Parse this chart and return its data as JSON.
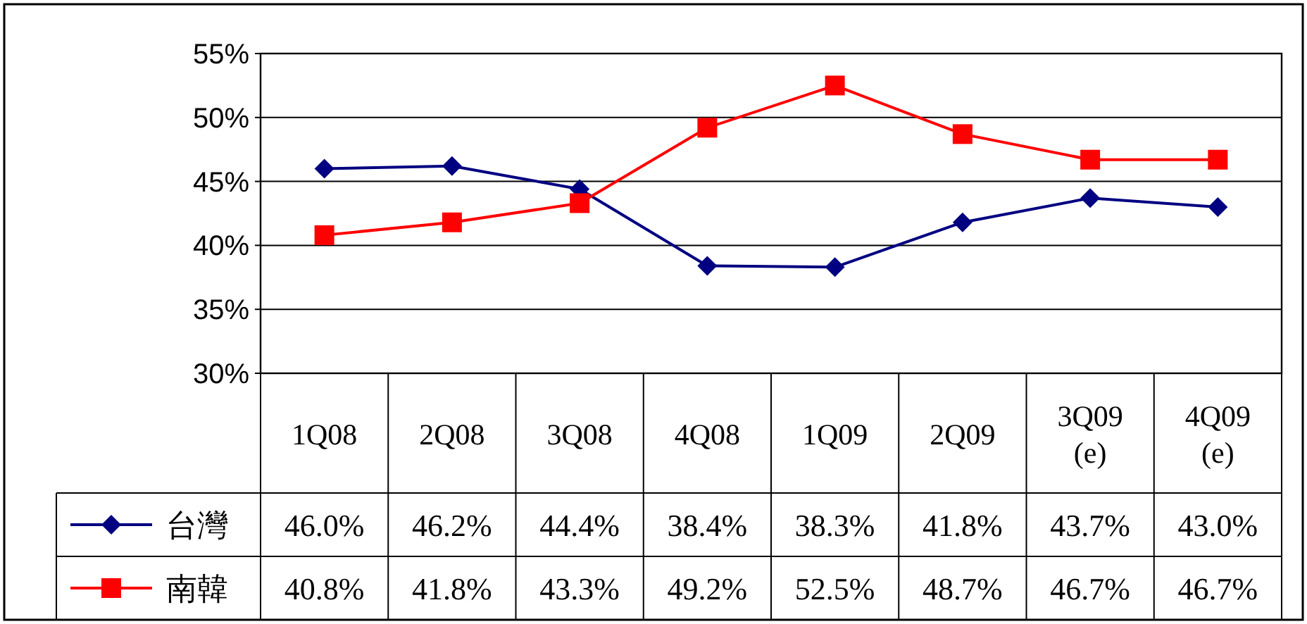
{
  "chart_data": {
    "type": "line",
    "categories": [
      "1Q08",
      "2Q08",
      "3Q08",
      "4Q08",
      "1Q09",
      "2Q09",
      "3Q09\n(e)",
      "4Q09\n(e)"
    ],
    "series": [
      {
        "name": "台灣",
        "color": "#000080",
        "marker": "diamond",
        "values": [
          46.0,
          46.2,
          44.4,
          38.4,
          38.3,
          41.8,
          43.7,
          43.0
        ],
        "value_labels": [
          "46.0%",
          "46.2%",
          "44.4%",
          "38.4%",
          "38.3%",
          "41.8%",
          "43.7%",
          "43.0%"
        ]
      },
      {
        "name": "南韓",
        "color": "#ff0000",
        "marker": "square",
        "values": [
          40.8,
          41.8,
          43.3,
          49.2,
          52.5,
          48.7,
          46.7,
          46.7
        ],
        "value_labels": [
          "40.8%",
          "41.8%",
          "43.3%",
          "49.2%",
          "52.5%",
          "48.7%",
          "46.7%",
          "46.7%"
        ]
      }
    ],
    "ylim": [
      30,
      55
    ],
    "yticks": [
      {
        "value": 30,
        "label": "30%"
      },
      {
        "value": 35,
        "label": "35%"
      },
      {
        "value": 40,
        "label": "40%"
      },
      {
        "value": 45,
        "label": "45%"
      },
      {
        "value": 50,
        "label": "50%"
      },
      {
        "value": 55,
        "label": "55%"
      }
    ],
    "grid": "y",
    "legend": "bottom left"
  }
}
